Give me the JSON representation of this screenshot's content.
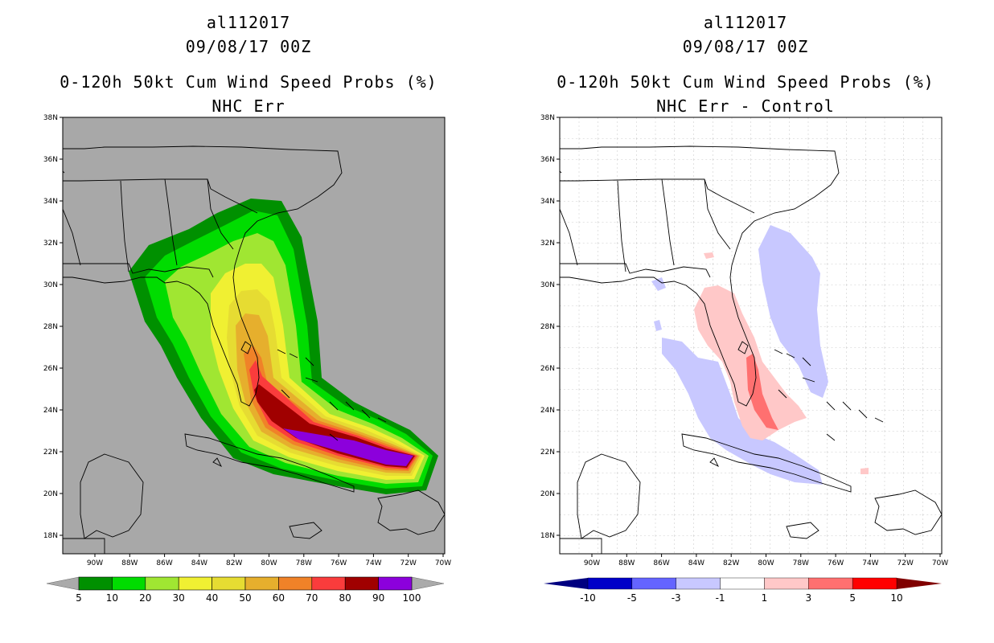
{
  "panels": [
    {
      "storm_id": "al112017",
      "datetime": "09/08/17 00Z",
      "product": "0-120h 50kt Cum Wind Speed Probs (%)",
      "subtitle": "NHC Err",
      "lat_labels": [
        "38N",
        "36N",
        "34N",
        "32N",
        "30N",
        "28N",
        "26N",
        "24N",
        "22N",
        "20N",
        "18N"
      ],
      "lon_labels": [
        "90W",
        "88W",
        "86W",
        "84W",
        "82W",
        "80W",
        "78W",
        "76W",
        "74W",
        "72W",
        "70W"
      ],
      "colorbar": {
        "labels": [
          "5",
          "10",
          "20",
          "30",
          "40",
          "50",
          "60",
          "70",
          "80",
          "90",
          "100"
        ],
        "colors": [
          "#009000",
          "#00dc00",
          "#a0e632",
          "#f0f032",
          "#e6dc32",
          "#e6af2d",
          "#f08228",
          "#fa3c3c",
          "#a00000",
          "#8c00dc"
        ],
        "end_color": "#aaaaaa"
      },
      "field_levels": [
        {
          "threshold": "5",
          "color": "#009000"
        },
        {
          "threshold": "10",
          "color": "#00dc00"
        },
        {
          "threshold": "20",
          "color": "#a0e632"
        },
        {
          "threshold": "30",
          "color": "#f0f032"
        },
        {
          "threshold": "40",
          "color": "#e6dc32"
        },
        {
          "threshold": "50",
          "color": "#e6af2d"
        },
        {
          "threshold": "60",
          "color": "#f08228"
        },
        {
          "threshold": "70",
          "color": "#fa3c3c"
        },
        {
          "threshold": "80",
          "color": "#a00000"
        },
        {
          "threshold": "90",
          "color": "#8c00dc"
        }
      ],
      "background": "#a8a8a8"
    },
    {
      "storm_id": "al112017",
      "datetime": "09/08/17 00Z",
      "product": "0-120h 50kt Cum Wind Speed Probs (%)",
      "subtitle": "NHC Err - Control",
      "lat_labels": [
        "38N",
        "36N",
        "34N",
        "32N",
        "30N",
        "28N",
        "26N",
        "24N",
        "22N",
        "20N",
        "18N"
      ],
      "lon_labels": [
        "90W",
        "88W",
        "86W",
        "84W",
        "82W",
        "80W",
        "78W",
        "76W",
        "74W",
        "72W",
        "70W"
      ],
      "colorbar": {
        "labels": [
          "-10",
          "-5",
          "-3",
          "-1",
          "1",
          "3",
          "5",
          "10"
        ],
        "colors": [
          "#0000c8",
          "#6464ff",
          "#c8c8ff",
          "#ffffff",
          "#ffc8c8",
          "#ff7070",
          "#ff0000"
        ],
        "end_left_color": "#000080",
        "end_right_color": "#800000"
      },
      "background": "#ffffff"
    }
  ]
}
